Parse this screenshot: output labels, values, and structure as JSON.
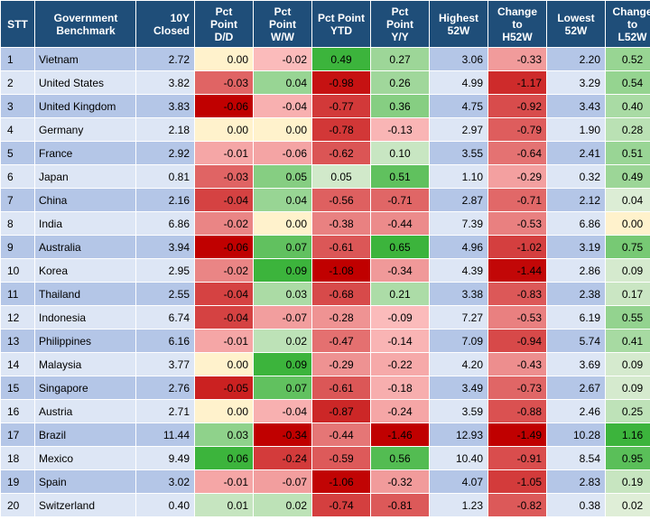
{
  "headers": {
    "stt": "STT",
    "benchmark": [
      "Government",
      "Benchmark"
    ],
    "closed": "10Y Closed",
    "dd": [
      "Pct",
      "Point",
      "D/D"
    ],
    "ww": [
      "Pct",
      "Point",
      "W/W"
    ],
    "ytd": [
      "Pct Point",
      "YTD"
    ],
    "yy": [
      "Pct",
      "Point",
      "Y/Y"
    ],
    "h52": [
      "Highest",
      "52W"
    ],
    "ch52": [
      "Change",
      "to",
      "H52W"
    ],
    "l52": [
      "Lowest",
      "52W"
    ],
    "cl52": [
      "Change",
      "to",
      "L52W"
    ]
  },
  "rows": [
    {
      "stt": "1",
      "name": "Vietnam",
      "closed": "2.72",
      "dd": "0.00",
      "ww": "-0.02",
      "ytd": "0.49",
      "yy": "0.27",
      "h52": "3.06",
      "ch52": "-0.33",
      "l52": "2.20",
      "cl52": "0.52"
    },
    {
      "stt": "2",
      "name": "United States",
      "closed": "3.82",
      "dd": "-0.03",
      "ww": "0.04",
      "ytd": "-0.98",
      "yy": "0.26",
      "h52": "4.99",
      "ch52": "-1.17",
      "l52": "3.29",
      "cl52": "0.54"
    },
    {
      "stt": "3",
      "name": "United Kingdom",
      "closed": "3.83",
      "dd": "-0.06",
      "ww": "-0.04",
      "ytd": "-0.77",
      "yy": "0.36",
      "h52": "4.75",
      "ch52": "-0.92",
      "l52": "3.43",
      "cl52": "0.40"
    },
    {
      "stt": "4",
      "name": "Germany",
      "closed": "2.18",
      "dd": "0.00",
      "ww": "0.00",
      "ytd": "-0.78",
      "yy": "-0.13",
      "h52": "2.97",
      "ch52": "-0.79",
      "l52": "1.90",
      "cl52": "0.28"
    },
    {
      "stt": "5",
      "name": "France",
      "closed": "2.92",
      "dd": "-0.01",
      "ww": "-0.06",
      "ytd": "-0.62",
      "yy": "0.10",
      "h52": "3.55",
      "ch52": "-0.64",
      "l52": "2.41",
      "cl52": "0.51"
    },
    {
      "stt": "6",
      "name": "Japan",
      "closed": "0.81",
      "dd": "-0.03",
      "ww": "0.05",
      "ytd": "0.05",
      "yy": "0.51",
      "h52": "1.10",
      "ch52": "-0.29",
      "l52": "0.32",
      "cl52": "0.49"
    },
    {
      "stt": "7",
      "name": "China",
      "closed": "2.16",
      "dd": "-0.04",
      "ww": "0.04",
      "ytd": "-0.56",
      "yy": "-0.71",
      "h52": "2.87",
      "ch52": "-0.71",
      "l52": "2.12",
      "cl52": "0.04"
    },
    {
      "stt": "8",
      "name": "India",
      "closed": "6.86",
      "dd": "-0.02",
      "ww": "0.00",
      "ytd": "-0.38",
      "yy": "-0.44",
      "h52": "7.39",
      "ch52": "-0.53",
      "l52": "6.86",
      "cl52": "0.00"
    },
    {
      "stt": "9",
      "name": "Australia",
      "closed": "3.94",
      "dd": "-0.06",
      "ww": "0.07",
      "ytd": "-0.61",
      "yy": "0.65",
      "h52": "4.96",
      "ch52": "-1.02",
      "l52": "3.19",
      "cl52": "0.75"
    },
    {
      "stt": "10",
      "name": "Korea",
      "closed": "2.95",
      "dd": "-0.02",
      "ww": "0.09",
      "ytd": "-1.08",
      "yy": "-0.34",
      "h52": "4.39",
      "ch52": "-1.44",
      "l52": "2.86",
      "cl52": "0.09"
    },
    {
      "stt": "11",
      "name": "Thailand",
      "closed": "2.55",
      "dd": "-0.04",
      "ww": "0.03",
      "ytd": "-0.68",
      "yy": "0.21",
      "h52": "3.38",
      "ch52": "-0.83",
      "l52": "2.38",
      "cl52": "0.17"
    },
    {
      "stt": "12",
      "name": "Indonesia",
      "closed": "6.74",
      "dd": "-0.04",
      "ww": "-0.07",
      "ytd": "-0.28",
      "yy": "-0.09",
      "h52": "7.27",
      "ch52": "-0.53",
      "l52": "6.19",
      "cl52": "0.55"
    },
    {
      "stt": "13",
      "name": "Philippines",
      "closed": "6.16",
      "dd": "-0.01",
      "ww": "0.02",
      "ytd": "-0.47",
      "yy": "-0.14",
      "h52": "7.09",
      "ch52": "-0.94",
      "l52": "5.74",
      "cl52": "0.41"
    },
    {
      "stt": "14",
      "name": "Malaysia",
      "closed": "3.77",
      "dd": "0.00",
      "ww": "0.09",
      "ytd": "-0.29",
      "yy": "-0.22",
      "h52": "4.20",
      "ch52": "-0.43",
      "l52": "3.69",
      "cl52": "0.09"
    },
    {
      "stt": "15",
      "name": "Singapore",
      "closed": "2.76",
      "dd": "-0.05",
      "ww": "0.07",
      "ytd": "-0.61",
      "yy": "-0.18",
      "h52": "3.49",
      "ch52": "-0.73",
      "l52": "2.67",
      "cl52": "0.09"
    },
    {
      "stt": "16",
      "name": "Austria",
      "closed": "2.71",
      "dd": "0.00",
      "ww": "-0.04",
      "ytd": "-0.87",
      "yy": "-0.24",
      "h52": "3.59",
      "ch52": "-0.88",
      "l52": "2.46",
      "cl52": "0.25"
    },
    {
      "stt": "17",
      "name": "Brazil",
      "closed": "11.44",
      "dd": "0.03",
      "ww": "-0.34",
      "ytd": "-0.44",
      "yy": "-1.46",
      "h52": "12.93",
      "ch52": "-1.49",
      "l52": "10.28",
      "cl52": "1.16"
    },
    {
      "stt": "18",
      "name": "Mexico",
      "closed": "9.49",
      "dd": "0.06",
      "ww": "-0.24",
      "ytd": "-0.59",
      "yy": "0.56",
      "h52": "10.40",
      "ch52": "-0.91",
      "l52": "8.54",
      "cl52": "0.95"
    },
    {
      "stt": "19",
      "name": "Spain",
      "closed": "3.02",
      "dd": "-0.01",
      "ww": "-0.07",
      "ytd": "-1.06",
      "yy": "-0.32",
      "h52": "4.07",
      "ch52": "-1.05",
      "l52": "2.83",
      "cl52": "0.19"
    },
    {
      "stt": "20",
      "name": "Switzerland",
      "closed": "0.40",
      "dd": "0.01",
      "ww": "0.02",
      "ytd": "-0.74",
      "yy": "-0.81",
      "h52": "1.23",
      "ch52": "-0.82",
      "l52": "0.38",
      "cl52": "0.02"
    }
  ],
  "colors": {
    "header_bg": "#1f4e79",
    "header_text": "#ffffff",
    "row_odd": "#b4c6e7",
    "row_even": "#dde6f5",
    "scale_negative_strong": "#c00000",
    "scale_positive_strong": "#3cb43c",
    "scale_neutral": "#fff2cc"
  }
}
